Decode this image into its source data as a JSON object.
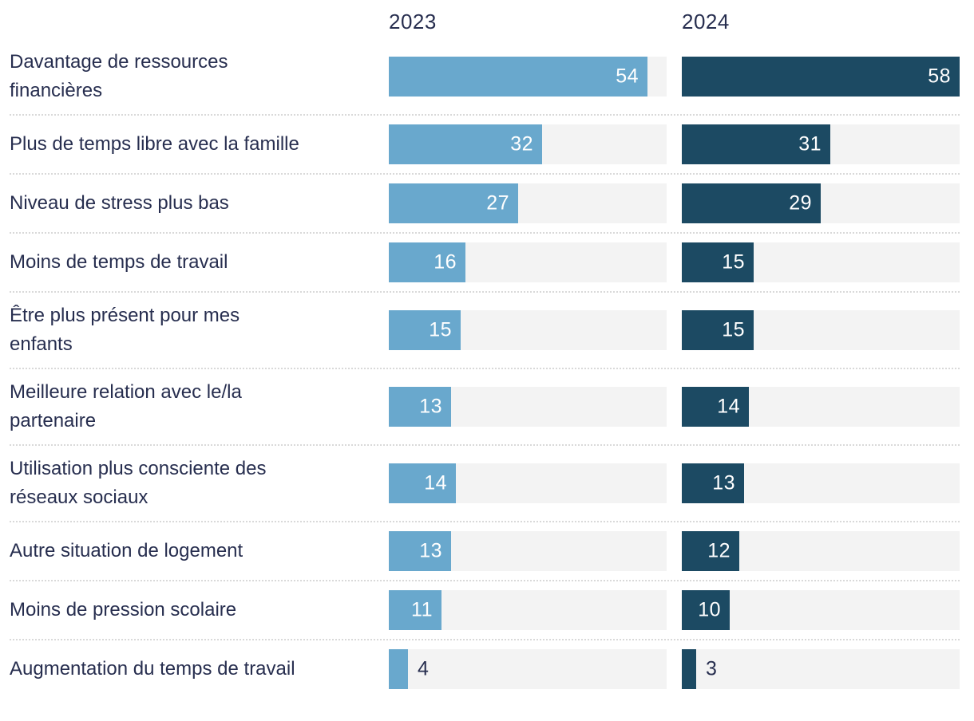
{
  "chart_data": {
    "type": "bar",
    "orientation": "horizontal",
    "title": "",
    "column_headers": [
      "2023",
      "2024"
    ],
    "max_value": 58,
    "grid": false,
    "legend_position": "top-column-headers",
    "colors": {
      "series_2023": "#69a8cd",
      "series_2024": "#1c4a63",
      "track": "#f3f3f3",
      "text": "#272e4f",
      "separator": "#d9d9d9",
      "value_inside": "#ffffff"
    },
    "rows": [
      {
        "label": "Davantage de ressources\nfinancières",
        "values": [
          54,
          58
        ]
      },
      {
        "label": "Plus de temps libre avec la famille",
        "values": [
          32,
          31
        ]
      },
      {
        "label": "Niveau de stress plus bas",
        "values": [
          27,
          29
        ]
      },
      {
        "label": "Moins de temps de travail",
        "values": [
          16,
          15
        ]
      },
      {
        "label": "Être plus présent pour mes\nenfants",
        "values": [
          15,
          15
        ]
      },
      {
        "label": "Meilleure relation avec le/la\npartenaire",
        "values": [
          13,
          14
        ]
      },
      {
        "label": "Utilisation plus consciente des\nréseaux sociaux",
        "values": [
          14,
          13
        ]
      },
      {
        "label": "Autre situation de logement",
        "values": [
          13,
          12
        ]
      },
      {
        "label": "Moins de pression scolaire",
        "values": [
          11,
          10
        ]
      },
      {
        "label": "Augmentation du temps de travail",
        "values": [
          4,
          3
        ]
      }
    ]
  }
}
